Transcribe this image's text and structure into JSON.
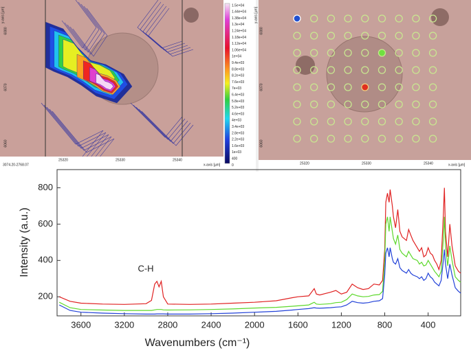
{
  "map_panel": {
    "range_label": "3074.20-2768.07",
    "x_axis_label": "x-axis [µm]",
    "y_axis_label": "y-axis [µm]",
    "x_ticks": [
      "25320",
      "25330",
      "25340"
    ],
    "y_ticks": [
      "6080",
      "6070",
      "6060"
    ],
    "colorbar_labels": [
      "1.5e+04",
      "1.44e+04",
      "1.38e+04",
      "1.3e+04",
      "1.24e+04",
      "1.18e+04",
      "1.12e+04",
      "1.06e+04",
      "1e+04",
      "9.4e+03",
      "8.8e+03",
      "8.2e+03",
      "7.6e+03",
      "7e+03",
      "6.4e+03",
      "5.8e+03",
      "5.2e+03",
      "4.6e+03",
      "4e+03",
      "3.4e+03",
      "2.8e+03",
      "2.2e+03",
      "1.6e+03",
      "1e+03",
      "400",
      "0"
    ]
  },
  "grid_panel": {
    "x_axis_label": "x-axis [µm]",
    "y_axis_label": "y-axis [µm]",
    "x_ticks": [
      "25320",
      "25330",
      "25340"
    ],
    "y_ticks": [
      "6080",
      "6070",
      "6060"
    ]
  },
  "chart_data": {
    "type": "line",
    "x_label": "Wavenumbers (cm⁻¹)",
    "y_label": "Intensity (a.u.)",
    "annotations": [
      "C-H"
    ],
    "x": [
      3800,
      3700,
      3600,
      3400,
      3200,
      3000,
      2950,
      2920,
      2900,
      2880,
      2860,
      2840,
      2800,
      2600,
      2400,
      2200,
      2000,
      1800,
      1650,
      1600,
      1500,
      1450,
      1430,
      1400,
      1300,
      1250,
      1200,
      1150,
      1100,
      1050,
      1000,
      950,
      900,
      850,
      820,
      800,
      790,
      775,
      760,
      750,
      730,
      720,
      700,
      680,
      660,
      640,
      600,
      580,
      560,
      540,
      500,
      480,
      460,
      440,
      420,
      400,
      380,
      360,
      340,
      320,
      300,
      280,
      260,
      250,
      240,
      220,
      200,
      180,
      150,
      120,
      100
    ],
    "series": [
      {
        "color": "#e02020",
        "values": [
          200,
          175,
          165,
          160,
          158,
          162,
          180,
          270,
          285,
          255,
          285,
          200,
          160,
          158,
          160,
          165,
          170,
          178,
          195,
          200,
          205,
          245,
          215,
          210,
          225,
          235,
          215,
          225,
          270,
          250,
          240,
          245,
          270,
          265,
          290,
          460,
          720,
          770,
          720,
          790,
          700,
          640,
          580,
          680,
          560,
          530,
          510,
          570,
          540,
          510,
          470,
          450,
          470,
          420,
          430,
          470,
          440,
          430,
          400,
          380,
          350,
          400,
          650,
          800,
          560,
          420,
          600,
          480,
          370,
          340,
          330
        ]
      },
      {
        "color": "#5cd82a",
        "values": [
          170,
          140,
          130,
          127,
          125,
          125,
          125,
          128,
          130,
          130,
          130,
          128,
          127,
          128,
          130,
          133,
          138,
          142,
          148,
          150,
          155,
          170,
          160,
          158,
          162,
          168,
          170,
          185,
          215,
          205,
          200,
          202,
          210,
          212,
          230,
          400,
          600,
          640,
          560,
          640,
          560,
          520,
          490,
          540,
          460,
          440,
          420,
          450,
          430,
          410,
          400,
          380,
          390,
          370,
          375,
          400,
          380,
          360,
          340,
          325,
          310,
          340,
          520,
          640,
          480,
          370,
          480,
          400,
          310,
          290,
          280
        ]
      },
      {
        "color": "#2040d8",
        "values": [
          155,
          125,
          115,
          110,
          107,
          105,
          105,
          105,
          106,
          106,
          106,
          106,
          105,
          105,
          107,
          110,
          115,
          120,
          127,
          130,
          135,
          140,
          138,
          137,
          140,
          143,
          145,
          155,
          175,
          168,
          165,
          168,
          175,
          178,
          190,
          320,
          440,
          470,
          420,
          470,
          410,
          390,
          380,
          410,
          360,
          345,
          330,
          350,
          330,
          320,
          310,
          300,
          310,
          290,
          300,
          330,
          310,
          300,
          280,
          270,
          260,
          290,
          400,
          460,
          380,
          300,
          380,
          320,
          250,
          230,
          220
        ]
      }
    ],
    "xlim": [
      3820,
      100
    ],
    "ylim": [
      95,
      900
    ],
    "xticks": [
      3600,
      3200,
      2800,
      2400,
      2000,
      1600,
      1200,
      800,
      400
    ],
    "yticks": [
      200,
      400,
      600,
      800
    ]
  }
}
